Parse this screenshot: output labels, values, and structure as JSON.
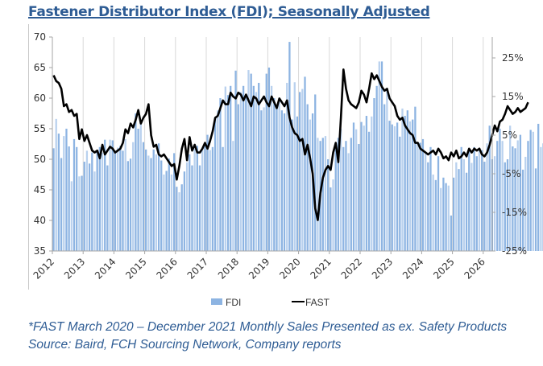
{
  "title": "Fastener Distributor Index (FDI); Seasonally Adjusted",
  "footnotes": [
    "*FAST March 2020 – December 2021 Monthly Sales Presented as ex. Safety Products",
    "Source: Baird, FCH Sourcing Network, Company reports"
  ],
  "colors": {
    "title": "#2e5c94",
    "fdi_bar": "#8db4e2",
    "fdi_bar_light": "#b9d1ee",
    "fast_line": "#000000",
    "gridline": "#d9d9d9",
    "axis": "#a6a6a6"
  },
  "chart_data": {
    "type": "bar",
    "title": "Fastener Distributor Index (FDI); Seasonally Adjusted",
    "xlabel": "",
    "ylabel": "",
    "y2label": "",
    "x_ticks": [
      "2012",
      "2013",
      "2014",
      "2015",
      "2016",
      "2017",
      "2018",
      "2019",
      "2020",
      "2021",
      "2022",
      "2023",
      "2024",
      "2025",
      "2026"
    ],
    "y_left": {
      "ticks": [
        35,
        40,
        45,
        50,
        55,
        60,
        65,
        70
      ],
      "range": [
        35,
        70
      ]
    },
    "y_right": {
      "ticks": [
        "-25%",
        "-15%",
        "-5%",
        "5%",
        "15%",
        "25%"
      ],
      "tick_values": [
        -25,
        -15,
        -5,
        5,
        15,
        25
      ],
      "range": [
        -25,
        28
      ]
    },
    "grid": "vertical at year boundaries",
    "legend": {
      "position": "bottom-center",
      "entries": [
        "FDI",
        "FAST"
      ]
    },
    "start": "2012-01",
    "frequency": "monthly",
    "series": [
      {
        "name": "FDI",
        "type": "bar",
        "axis": "left",
        "values": [
          51.8,
          56.6,
          54.2,
          50.2,
          53.8,
          55.0,
          52.1,
          46.4,
          53.3,
          52.0,
          47.2,
          47.3,
          49.6,
          51.4,
          49.3,
          51.1,
          48.0,
          51.3,
          52.0,
          51.1,
          53.2,
          49.0,
          53.2,
          53.1,
          51.3,
          51.9,
          52.2,
          51.4,
          53.3,
          49.7,
          50.1,
          52.8,
          57.5,
          55.0,
          56.3,
          52.8,
          51.6,
          50.6,
          50.2,
          51.6,
          50.8,
          52.6,
          49.8,
          47.5,
          48.1,
          50.1,
          47.5,
          51.0,
          45.5,
          44.6,
          45.9,
          48.0,
          49.5,
          50.8,
          49.0,
          51.7,
          52.2,
          49.0,
          51.5,
          52.5,
          54.0,
          51.5,
          52.0,
          56.9,
          58.0,
          60.0,
          52.0,
          61.9,
          60.5,
          62.0,
          53.0,
          64.5,
          59.0,
          61.0,
          62.0,
          60.5,
          64.6,
          64.0,
          62.0,
          61.0,
          62.5,
          58.0,
          58.5,
          64.0,
          65.0,
          62.0,
          60.0,
          58.7,
          60.0,
          58.0,
          57.5,
          62.5,
          69.2,
          56.5,
          62.6,
          57.0,
          61.0,
          61.5,
          63.5,
          59.0,
          56.5,
          57.5,
          60.6,
          53.5,
          53.0,
          53.5,
          53.8,
          50.0,
          45.4,
          46.7,
          52.0,
          53.5,
          55.0,
          52.0,
          53.0,
          51.0,
          53.5,
          56.0,
          54.9,
          52.5,
          56.1,
          55.5,
          57.1,
          54.5,
          57.0,
          60.0,
          62.0,
          66.0,
          66.0,
          59.0,
          61.3,
          56.3,
          55.7,
          55.4,
          56.0,
          53.7,
          58.3,
          57.1,
          58.0,
          56.2,
          56.5,
          58.6,
          52.5,
          52.7,
          53.3,
          50.9,
          49.5,
          52.0,
          47.5,
          46.6,
          50.5,
          45.3,
          47.0,
          46.1,
          45.7,
          40.8,
          47.0,
          49.5,
          48.4,
          52.0,
          50.0,
          47.8,
          51.5,
          49.4,
          52.0,
          50.5,
          51.6,
          51.5,
          49.6,
          52.6,
          55.5,
          50.0,
          50.5,
          53.0,
          55.0,
          53.0,
          49.5,
          50.0,
          55.5,
          52.1,
          51.8,
          53.1,
          54.0,
          48.3,
          50.4,
          53.0,
          54.8,
          54.5,
          48.5,
          55.8,
          52.0,
          52.6,
          59.5
        ]
      },
      {
        "name": "FAST",
        "type": "line",
        "axis": "right",
        "unit": "%",
        "values": [
          20.5,
          19.0,
          18.5,
          17.0,
          12.5,
          13.0,
          11.0,
          11.5,
          10.0,
          10.5,
          4.0,
          6.5,
          3.5,
          5.0,
          3.0,
          1.0,
          0.5,
          1.0,
          -1.0,
          2.5,
          0.0,
          1.0,
          2.0,
          1.5,
          0.5,
          1.0,
          1.5,
          3.0,
          6.5,
          5.5,
          8.0,
          7.0,
          9.0,
          11.5,
          8.0,
          9.5,
          10.5,
          13.0,
          5.0,
          2.0,
          2.5,
          0.0,
          -0.5,
          0.0,
          -1.0,
          -2.0,
          -3.0,
          -2.5,
          -6.5,
          -3.0,
          1.5,
          4.0,
          -1.5,
          4.5,
          1.0,
          2.5,
          0.5,
          0.5,
          1.5,
          3.0,
          1.5,
          3.5,
          6.0,
          9.5,
          10.0,
          12.0,
          14.0,
          13.0,
          13.0,
          16.0,
          15.0,
          14.5,
          16.0,
          15.5,
          14.0,
          15.5,
          14.0,
          12.5,
          15.0,
          14.5,
          13.0,
          14.0,
          15.0,
          13.5,
          12.5,
          15.0,
          13.5,
          12.0,
          14.5,
          13.5,
          12.5,
          14.0,
          9.5,
          7.0,
          5.5,
          5.0,
          3.5,
          4.0,
          0.0,
          2.5,
          -1.0,
          -5.0,
          -14.0,
          -17.0,
          -10.0,
          -6.0,
          -4.0,
          -3.0,
          -4.0,
          0.5,
          3.0,
          -2.0,
          9.5,
          22.0,
          17.0,
          14.0,
          13.0,
          12.5,
          12.0,
          13.5,
          16.5,
          15.5,
          13.5,
          17.0,
          21.0,
          19.5,
          20.5,
          19.0,
          17.5,
          16.5,
          17.0,
          14.5,
          13.5,
          12.5,
          10.0,
          9.0,
          9.5,
          7.5,
          6.5,
          5.5,
          5.0,
          3.0,
          3.0,
          1.5,
          1.0,
          0.5,
          0.0,
          0.5,
          1.0,
          0.0,
          1.5,
          0.5,
          -1.0,
          -0.5,
          -1.5,
          0.5,
          -0.5,
          1.0,
          -1.0,
          -0.5,
          0.5,
          -0.5,
          1.5,
          0.5,
          1.5,
          1.0,
          1.5,
          0.0,
          -0.5,
          0.5,
          2.5,
          5.0,
          7.5,
          6.0,
          8.5,
          9.0,
          10.5,
          12.5,
          11.5,
          10.5,
          11.0,
          12.0,
          11.0,
          11.5,
          12.0,
          13.5
        ]
      }
    ]
  }
}
